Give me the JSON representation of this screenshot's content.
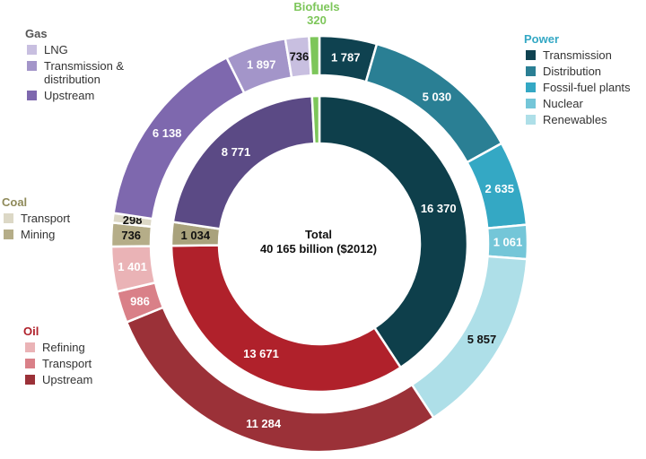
{
  "chart_data": {
    "type": "donut",
    "center_label": [
      "Total",
      "40 165 billion ($2012)"
    ],
    "inner": [
      {
        "name": "Power",
        "value": 16370,
        "label": "16 370",
        "color": "#0e3f4b"
      },
      {
        "name": "Oil",
        "value": 13671,
        "label": "13 671",
        "color": "#b0212b"
      },
      {
        "name": "Coal",
        "value": 1034,
        "label": "1 034",
        "color": "#a9a27c"
      },
      {
        "name": "Gas",
        "value": 8771,
        "label": "8 771",
        "color": "#5b4a85"
      },
      {
        "name": "Biofuels",
        "value": 320,
        "label": "",
        "color": "#7dc65a"
      }
    ],
    "outer": [
      {
        "group": "Power",
        "name": "Transmission",
        "value": 1787,
        "label": "1 787",
        "color": "#0f4250"
      },
      {
        "group": "Power",
        "name": "Distribution",
        "value": 5030,
        "label": "5 030",
        "color": "#2a7f94"
      },
      {
        "group": "Power",
        "name": "Fossil-fuel plants",
        "value": 2635,
        "label": "2 635",
        "color": "#34a8c4"
      },
      {
        "group": "Power",
        "name": "Nuclear",
        "value": 1061,
        "label": "1 061",
        "color": "#74c6d8"
      },
      {
        "group": "Power",
        "name": "Renewables",
        "value": 5857,
        "label": "5 857",
        "color": "#aedfe8"
      },
      {
        "group": "Oil",
        "name": "Upstream",
        "value": 11284,
        "label": "11 284",
        "color": "#9b3138"
      },
      {
        "group": "Oil",
        "name": "Transport",
        "value": 986,
        "label": "986",
        "color": "#d98088"
      },
      {
        "group": "Oil",
        "name": "Refining",
        "value": 1401,
        "label": "1 401",
        "color": "#eab3b6"
      },
      {
        "group": "Coal",
        "name": "Mining",
        "value": 736,
        "label": "736",
        "color": "#b5ad88"
      },
      {
        "group": "Coal",
        "name": "Transport",
        "value": 298,
        "label": "298",
        "color": "#dcd8c6"
      },
      {
        "group": "Gas",
        "name": "Upstream",
        "value": 6138,
        "label": "6 138",
        "color": "#7e68ae"
      },
      {
        "group": "Gas",
        "name": "Transmission & distribution",
        "value": 1897,
        "label": "1 897",
        "color": "#a395c9"
      },
      {
        "group": "Gas",
        "name": "LNG",
        "value": 736,
        "label": "736",
        "color": "#c8bfe0"
      },
      {
        "group": "Biofuels",
        "name": "Biofuels",
        "value": 320,
        "label": "",
        "color": "#7dc65a"
      }
    ],
    "biofuels_label": {
      "title": "Biofuels",
      "value": "320",
      "color": "#7dc65a"
    },
    "legends": {
      "gas": {
        "title": "Gas",
        "color": "#555",
        "items": [
          {
            "label": "LNG",
            "color": "#c8bfe0"
          },
          {
            "label": "Transmission & distribution",
            "color": "#a395c9"
          },
          {
            "label": "Upstream",
            "color": "#7e68ae"
          }
        ]
      },
      "coal": {
        "title": "Coal",
        "color": "#8f8a5a",
        "items": [
          {
            "label": "Transport",
            "color": "#dcd8c6"
          },
          {
            "label": "Mining",
            "color": "#b5ad88"
          }
        ]
      },
      "oil": {
        "title": "Oil",
        "color": "#b0212b",
        "items": [
          {
            "label": "Refining",
            "color": "#eab3b6"
          },
          {
            "label": "Transport",
            "color": "#d98088"
          },
          {
            "label": "Upstream",
            "color": "#9b3138"
          }
        ]
      },
      "power": {
        "title": "Power",
        "color": "#34a8c4",
        "items": [
          {
            "label": "Transmission",
            "color": "#0f4250"
          },
          {
            "label": "Distribution",
            "color": "#2a7f94"
          },
          {
            "label": "Fossil-fuel plants",
            "color": "#34a8c4"
          },
          {
            "label": "Nuclear",
            "color": "#74c6d8"
          },
          {
            "label": "Renewables",
            "color": "#aedfe8"
          }
        ]
      }
    }
  }
}
